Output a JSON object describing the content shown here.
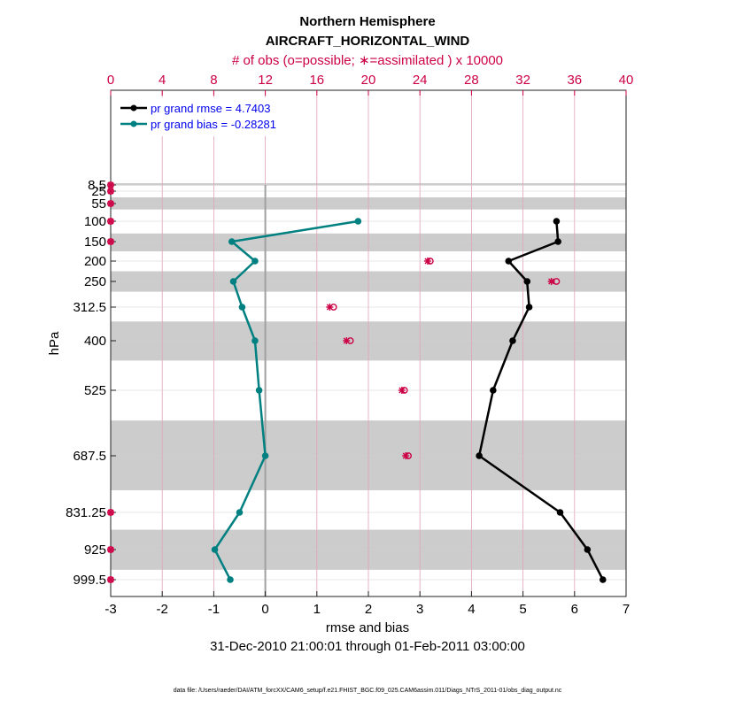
{
  "chart_data": {
    "type": "line",
    "title": "Northern Hemisphere",
    "subtitle": "AIRCRAFT_HORIZONTAL_WIND",
    "top_axis_label": "# of obs (o=possible; ∗=assimilated ) x 10000",
    "xlabel": "rmse and bias",
    "ylabel": "hPa",
    "date_range": "31-Dec-2010 21:00:01 through 01-Feb-2011 03:00:00",
    "footer": "data file: /Users/raeder/DAI/ATM_forcXX/CAM6_setup/f.e21.FHIST_BGC.f09_025.CAM6assim.011/Diags_NTrS_2011-01/obs_diag_output.nc",
    "xlim": [
      -3,
      7
    ],
    "x_ticks": [
      "-3",
      "-2",
      "-1",
      "0",
      "1",
      "2",
      "3",
      "4",
      "5",
      "6",
      "7"
    ],
    "top_xlim": [
      0,
      40
    ],
    "top_ticks": [
      "0",
      "4",
      "8",
      "12",
      "16",
      "20",
      "24",
      "28",
      "32",
      "36",
      "40"
    ],
    "levels": [
      8.5,
      25,
      55,
      100,
      150,
      200,
      250,
      312.5,
      400,
      525,
      687.5,
      831.25,
      925,
      999.5
    ],
    "level_labels": [
      "8.5",
      "25",
      "55",
      "100",
      "150",
      "200",
      "250",
      "312.5",
      "400",
      "525",
      "687.5",
      "831.25",
      "925",
      "999.5"
    ],
    "shaded_bands": [
      [
        6,
        10
      ],
      [
        40,
        70
      ],
      [
        130,
        175
      ],
      [
        225,
        275
      ],
      [
        350,
        450
      ],
      [
        600,
        775
      ],
      [
        875,
        975
      ]
    ],
    "series": [
      {
        "name": "pr grand rmse = 4.7403",
        "color": "#000000",
        "levels": [
          100,
          150,
          200,
          250,
          312.5,
          400,
          525,
          687.5,
          831.25,
          925,
          999.5
        ],
        "values": [
          5.65,
          5.68,
          4.72,
          5.08,
          5.12,
          4.8,
          4.42,
          4.15,
          5.72,
          6.25,
          6.55
        ]
      },
      {
        "name": "pr grand bias = -0.28281",
        "color": "#008080",
        "levels": [
          100,
          150,
          200,
          250,
          312.5,
          400,
          525,
          687.5,
          831.25,
          925,
          999.5
        ],
        "values": [
          1.8,
          -0.65,
          -0.2,
          -0.62,
          -0.45,
          -0.2,
          -0.12,
          0.0,
          -0.5,
          -0.98,
          -0.68
        ]
      }
    ],
    "obs_count": {
      "color": "#cc0044",
      "levels": [
        8.5,
        25,
        55,
        100,
        150,
        200,
        250,
        312.5,
        400,
        525,
        687.5,
        831.25,
        925,
        999.5
      ],
      "possible": [
        0.0,
        0.0,
        0.0,
        0.0,
        0.0,
        24.8,
        34.6,
        17.3,
        18.6,
        22.8,
        23.1,
        0.0,
        0.0,
        0.0
      ],
      "assimilated": [
        0.0,
        0.0,
        0.0,
        0.0,
        0.0,
        24.6,
        34.2,
        17.0,
        18.3,
        22.6,
        22.9,
        0.0,
        0.0,
        0.0
      ]
    }
  }
}
